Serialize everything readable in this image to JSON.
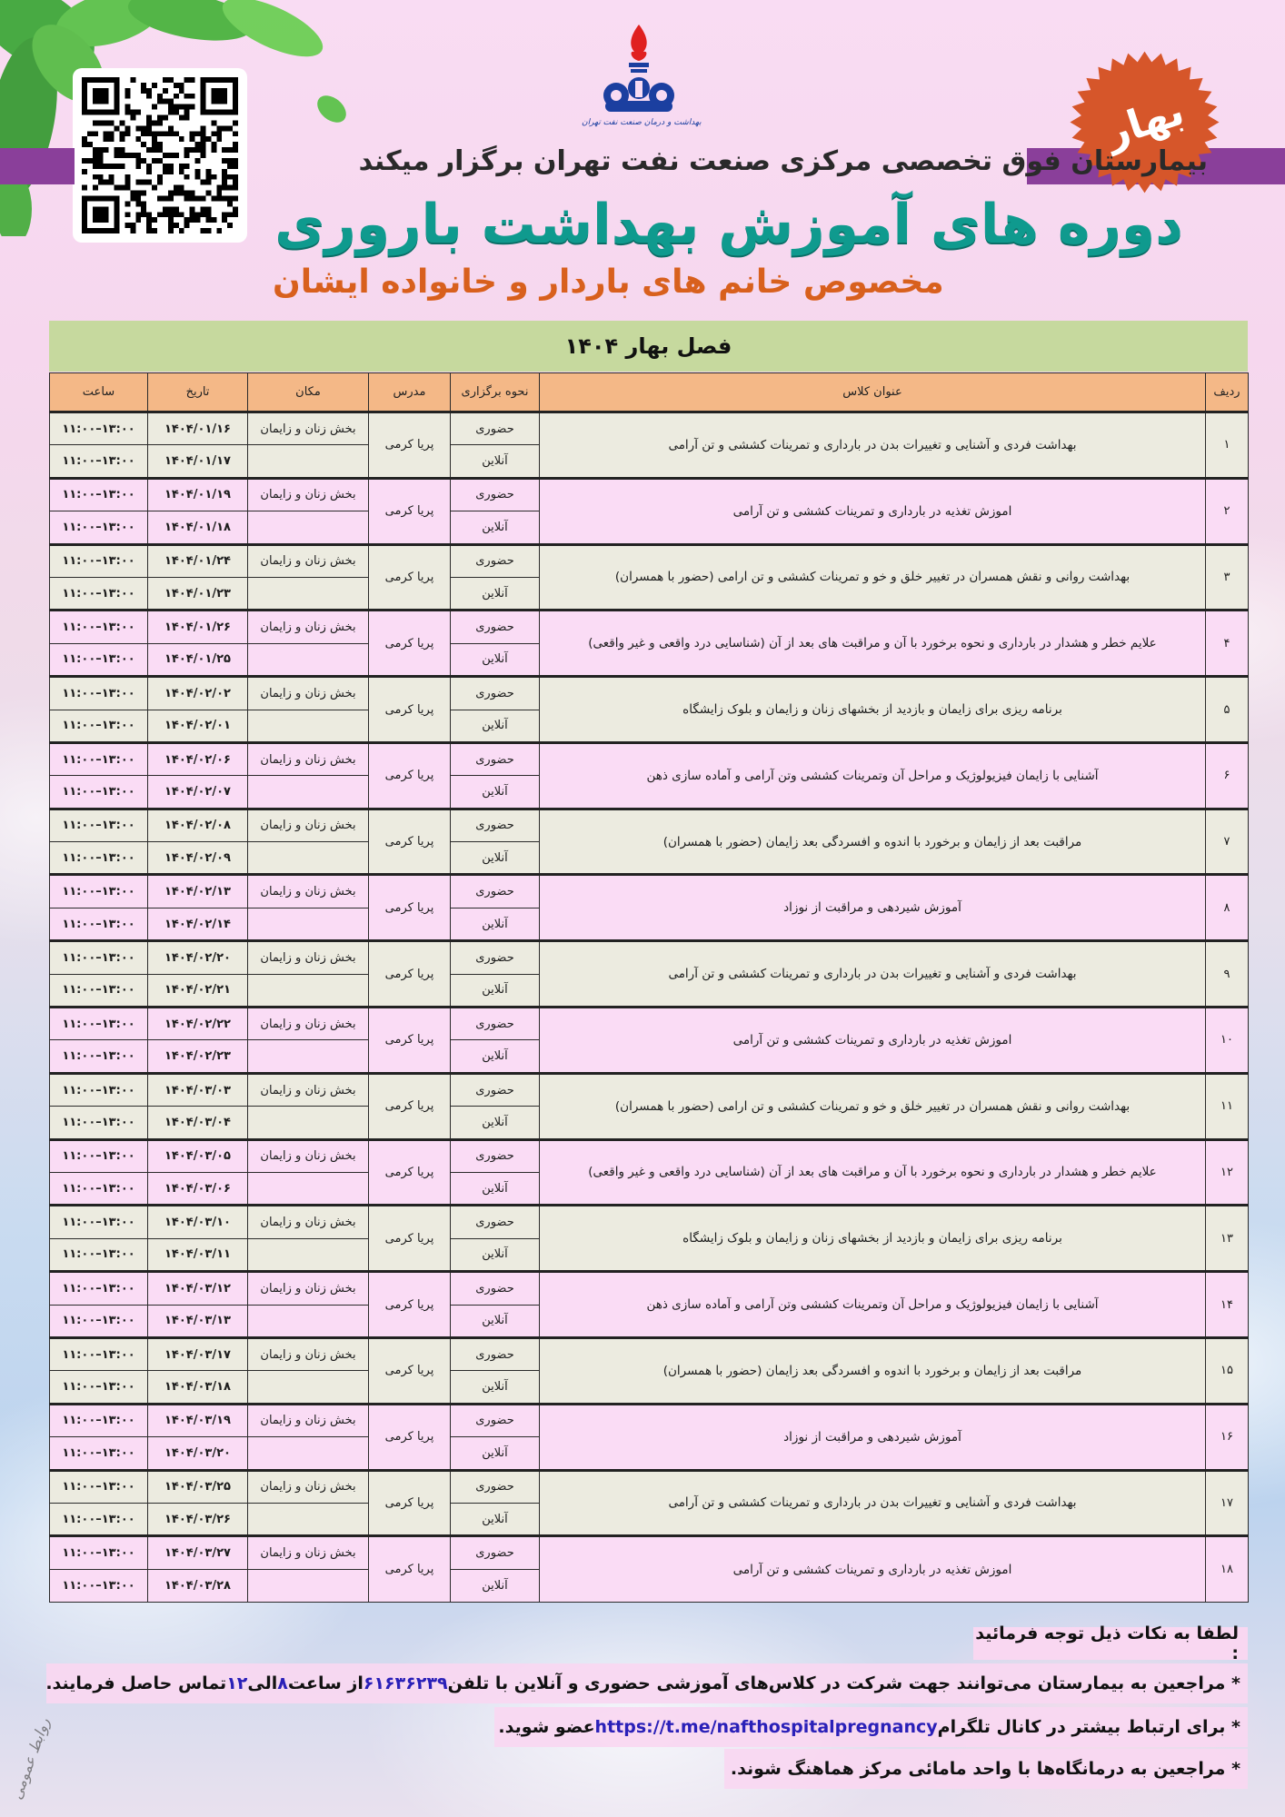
{
  "header": {
    "logo_caption": "بهداشت و درمان صنعت نفت تهران",
    "season_badge": "بهار",
    "organizer": "بیمارستان فوق تخصصی مرکزی صنعت نفت تهران برگزار میکند",
    "title": "دوره های آموزش بهداشت باروری",
    "subtitle": "مخصوص خانم های باردار و خانواده ایشان",
    "season_band": "فصل بهار ۱۴۰۴"
  },
  "colors": {
    "title": "#0f9a8e",
    "subtitle": "#d8601d",
    "band": "#8a3f9a",
    "badge": "#d6562a",
    "header_row": "#f4b887",
    "season_band": "#c6d99e",
    "row_odd": "#ecebe0",
    "row_even": "#fadcf5",
    "highlight": "#2a20b8"
  },
  "table": {
    "columns": [
      "ردیف",
      "عنوان کلاس",
      "نحوه برگزاری",
      "مدرس",
      "مکان",
      "تاریخ",
      "ساعت"
    ],
    "courses": [
      {
        "num": "۱",
        "title": "بهداشت فردی و آشنایی و تغییرات بدن در بارداری  و تمرینات کششی و تن آرامی",
        "teacher": "پریا کرمی",
        "sessions": [
          {
            "mode": "حضوری",
            "place": "بخش زنان و زایمان",
            "date": "۱۴۰۴/۰۱/۱۶",
            "time": "۱۱:۰۰–۱۳:۰۰"
          },
          {
            "mode": "آنلاین",
            "place": "",
            "date": "۱۴۰۴/۰۱/۱۷",
            "time": "۱۱:۰۰–۱۳:۰۰"
          }
        ]
      },
      {
        "num": "۲",
        "title": "اموزش تغذیه در بارداری و تمرینات کششی و تن آرامی",
        "teacher": "پریا کرمی",
        "sessions": [
          {
            "mode": "حضوری",
            "place": "بخش زنان و زایمان",
            "date": "۱۴۰۴/۰۱/۱۹",
            "time": "۱۱:۰۰–۱۳:۰۰"
          },
          {
            "mode": "آنلاین",
            "place": "",
            "date": "۱۴۰۴/۰۱/۱۸",
            "time": "۱۱:۰۰–۱۳:۰۰"
          }
        ]
      },
      {
        "num": "۳",
        "title": "بهداشت روانی و نقش همسران در تغییر خلق و خو و تمرینات کششی و تن ارامی (حضور با همسران)",
        "teacher": "پریا کرمی",
        "sessions": [
          {
            "mode": "حضوری",
            "place": "بخش زنان و زایمان",
            "date": "۱۴۰۴/۰۱/۲۴",
            "time": "۱۱:۰۰–۱۳:۰۰"
          },
          {
            "mode": "آنلاین",
            "place": "",
            "date": "۱۴۰۴/۰۱/۲۳",
            "time": "۱۱:۰۰–۱۳:۰۰"
          }
        ]
      },
      {
        "num": "۴",
        "title": "علایم خطر و هشدار در بارداری و نحوه برخورد با آن و مراقبت های بعد از آن (شناسایی درد واقعی و غیر واقعی)",
        "teacher": "پریا کرمی",
        "sessions": [
          {
            "mode": "حضوری",
            "place": "بخش زنان و زایمان",
            "date": "۱۴۰۴/۰۱/۲۶",
            "time": "۱۱:۰۰–۱۳:۰۰"
          },
          {
            "mode": "آنلاین",
            "place": "",
            "date": "۱۴۰۴/۰۱/۲۵",
            "time": "۱۱:۰۰–۱۳:۰۰"
          }
        ]
      },
      {
        "num": "۵",
        "title": "برنامه ریزی برای زایمان و بازدید از بخشهای زنان و زایمان و بلوک زایشگاه",
        "teacher": "پریا کرمی",
        "sessions": [
          {
            "mode": "حضوری",
            "place": "بخش زنان و زایمان",
            "date": "۱۴۰۴/۰۲/۰۲",
            "time": "۱۱:۰۰–۱۳:۰۰"
          },
          {
            "mode": "آنلاین",
            "place": "",
            "date": "۱۴۰۴/۰۲/۰۱",
            "time": "۱۱:۰۰–۱۳:۰۰"
          }
        ]
      },
      {
        "num": "۶",
        "title": "آشنایی با زایمان فیزیولوژیک و مراحل آن وتمرینات کششی وتن آرامی و آماده سازی ذهن",
        "teacher": "پریا کرمی",
        "sessions": [
          {
            "mode": "حضوری",
            "place": "بخش زنان و زایمان",
            "date": "۱۴۰۴/۰۲/۰۶",
            "time": "۱۱:۰۰–۱۳:۰۰"
          },
          {
            "mode": "آنلاین",
            "place": "",
            "date": "۱۴۰۴/۰۲/۰۷",
            "time": "۱۱:۰۰–۱۳:۰۰"
          }
        ]
      },
      {
        "num": "۷",
        "title": "مراقبت بعد از زایمان و برخورد با اندوه و افسردگی بعد زایمان (حضور با همسران)",
        "teacher": "پریا کرمی",
        "sessions": [
          {
            "mode": "حضوری",
            "place": "بخش زنان و زایمان",
            "date": "۱۴۰۴/۰۲/۰۸",
            "time": "۱۱:۰۰–۱۳:۰۰"
          },
          {
            "mode": "آنلاین",
            "place": "",
            "date": "۱۴۰۴/۰۲/۰۹",
            "time": "۱۱:۰۰–۱۳:۰۰"
          }
        ]
      },
      {
        "num": "۸",
        "title": "آموزش شیردهی و مراقبت از نوزاد",
        "teacher": "پریا کرمی",
        "sessions": [
          {
            "mode": "حضوری",
            "place": "بخش زنان و زایمان",
            "date": "۱۴۰۴/۰۲/۱۳",
            "time": "۱۱:۰۰–۱۳:۰۰"
          },
          {
            "mode": "آنلاین",
            "place": "",
            "date": "۱۴۰۴/۰۲/۱۴",
            "time": "۱۱:۰۰–۱۳:۰۰"
          }
        ]
      },
      {
        "num": "۹",
        "title": "بهداشت فردی و آشنایی و تغییرات بدن در بارداری  و تمرینات کششی و تن آرامی",
        "teacher": "پریا کرمی",
        "sessions": [
          {
            "mode": "حضوری",
            "place": "بخش زنان و زایمان",
            "date": "۱۴۰۴/۰۲/۲۰",
            "time": "۱۱:۰۰–۱۳:۰۰"
          },
          {
            "mode": "آنلاین",
            "place": "",
            "date": "۱۴۰۴/۰۲/۲۱",
            "time": "۱۱:۰۰–۱۳:۰۰"
          }
        ]
      },
      {
        "num": "۱۰",
        "title": "اموزش تغذیه در بارداری و تمرینات کششی و تن آرامی",
        "teacher": "پریا کرمی",
        "sessions": [
          {
            "mode": "حضوری",
            "place": "بخش زنان و زایمان",
            "date": "۱۴۰۴/۰۲/۲۲",
            "time": "۱۱:۰۰–۱۳:۰۰"
          },
          {
            "mode": "آنلاین",
            "place": "",
            "date": "۱۴۰۴/۰۲/۲۳",
            "time": "۱۱:۰۰–۱۳:۰۰"
          }
        ]
      },
      {
        "num": "۱۱",
        "title": "بهداشت روانی و نقش همسران در تغییر خلق و خو و تمرینات کششی و تن ارامی (حضور با همسران)",
        "teacher": "پریا کرمی",
        "sessions": [
          {
            "mode": "حضوری",
            "place": "بخش زنان و زایمان",
            "date": "۱۴۰۴/۰۳/۰۳",
            "time": "۱۱:۰۰–۱۳:۰۰"
          },
          {
            "mode": "آنلاین",
            "place": "",
            "date": "۱۴۰۴/۰۳/۰۴",
            "time": "۱۱:۰۰–۱۳:۰۰"
          }
        ]
      },
      {
        "num": "۱۲",
        "title": "علایم خطر و هشدار در بارداری و نحوه برخورد با آن و مراقبت های بعد از آن (شناسایی درد واقعی و غیر واقعی)",
        "teacher": "پریا کرمی",
        "sessions": [
          {
            "mode": "حضوری",
            "place": "بخش زنان و زایمان",
            "date": "۱۴۰۴/۰۳/۰۵",
            "time": "۱۱:۰۰–۱۳:۰۰"
          },
          {
            "mode": "آنلاین",
            "place": "",
            "date": "۱۴۰۴/۰۳/۰۶",
            "time": "۱۱:۰۰–۱۳:۰۰"
          }
        ]
      },
      {
        "num": "۱۳",
        "title": "برنامه ریزی برای زایمان و بازدید از بخشهای زنان و زایمان و بلوک زایشگاه",
        "teacher": "پریا کرمی",
        "sessions": [
          {
            "mode": "حضوری",
            "place": "بخش زنان و زایمان",
            "date": "۱۴۰۴/۰۳/۱۰",
            "time": "۱۱:۰۰–۱۳:۰۰"
          },
          {
            "mode": "آنلاین",
            "place": "",
            "date": "۱۴۰۴/۰۳/۱۱",
            "time": "۱۱:۰۰–۱۳:۰۰"
          }
        ]
      },
      {
        "num": "۱۴",
        "title": "آشنایی با زایمان فیزیولوژیک و مراحل آن وتمرینات کششی وتن آرامی و آماده سازی ذهن",
        "teacher": "پریا کرمی",
        "sessions": [
          {
            "mode": "حضوری",
            "place": "بخش زنان و زایمان",
            "date": "۱۴۰۴/۰۳/۱۲",
            "time": "۱۱:۰۰–۱۳:۰۰"
          },
          {
            "mode": "آنلاین",
            "place": "",
            "date": "۱۴۰۴/۰۳/۱۳",
            "time": "۱۱:۰۰–۱۳:۰۰"
          }
        ]
      },
      {
        "num": "۱۵",
        "title": "مراقبت بعد از زایمان و برخورد با اندوه و افسردگی بعد زایمان (حضور با همسران)",
        "teacher": "پریا کرمی",
        "sessions": [
          {
            "mode": "حضوری",
            "place": "بخش زنان و زایمان",
            "date": "۱۴۰۴/۰۳/۱۷",
            "time": "۱۱:۰۰–۱۳:۰۰"
          },
          {
            "mode": "آنلاین",
            "place": "",
            "date": "۱۴۰۴/۰۳/۱۸",
            "time": "۱۱:۰۰–۱۳:۰۰"
          }
        ]
      },
      {
        "num": "۱۶",
        "title": "آموزش شیردهی و مراقبت از نوزاد",
        "teacher": "پریا کرمی",
        "sessions": [
          {
            "mode": "حضوری",
            "place": "بخش زنان و زایمان",
            "date": "۱۴۰۴/۰۳/۱۹",
            "time": "۱۱:۰۰–۱۳:۰۰"
          },
          {
            "mode": "آنلاین",
            "place": "",
            "date": "۱۴۰۴/۰۳/۲۰",
            "time": "۱۱:۰۰–۱۳:۰۰"
          }
        ]
      },
      {
        "num": "۱۷",
        "title": "بهداشت فردی و آشنایی و تغییرات بدن در بارداری  و تمرینات کششی و تن آرامی",
        "teacher": "پریا کرمی",
        "sessions": [
          {
            "mode": "حضوری",
            "place": "بخش زنان و زایمان",
            "date": "۱۴۰۴/۰۳/۲۵",
            "time": "۱۱:۰۰–۱۳:۰۰"
          },
          {
            "mode": "آنلاین",
            "place": "",
            "date": "۱۴۰۴/۰۳/۲۶",
            "time": "۱۱:۰۰–۱۳:۰۰"
          }
        ]
      },
      {
        "num": "۱۸",
        "title": "اموزش تغذیه در بارداری و تمرینات کششی و تن آرامی",
        "teacher": "پریا کرمی",
        "sessions": [
          {
            "mode": "حضوری",
            "place": "بخش زنان و زایمان",
            "date": "۱۴۰۴/۰۳/۲۷",
            "time": "۱۱:۰۰–۱۳:۰۰"
          },
          {
            "mode": "آنلاین",
            "place": "",
            "date": "۱۴۰۴/۰۳/۲۸",
            "time": "۱۱:۰۰–۱۳:۰۰"
          }
        ]
      }
    ]
  },
  "notes": {
    "heading": "لطفا به نکات ذیل توجه فرمائید :",
    "line1": {
      "a": "* مراجعین به بیمارستان می‌توانند جهت شرکت در کلاس‌های آموزشی حضوری و آنلاین با تلفن ",
      "phone": "۶۱۶۳۶۲۳۹",
      "b": " از ساعت ",
      "from": "۸",
      "c": " الی ",
      "to": "۱۲",
      "d": " تماس حاصل فرمایند."
    },
    "line2": {
      "a": "* برای ارتباط بیشتر در کانال تلگرام ",
      "link": "https://t.me/nafthospitalpregnancy",
      "b": " عضو شوید."
    },
    "line3": "* مراجعین به درمانگاه‌ها با واحد مامائی مرکز هماهنگ شوند."
  },
  "watermark": "روابط عمومی"
}
